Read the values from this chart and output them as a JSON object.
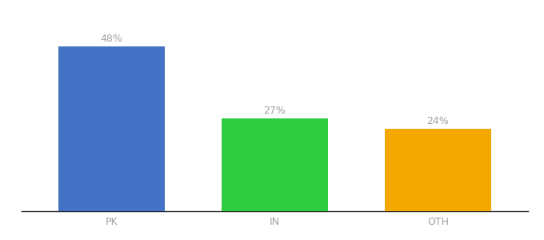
{
  "categories": [
    "PK",
    "IN",
    "OTH"
  ],
  "values": [
    48,
    27,
    24
  ],
  "bar_colors": [
    "#4472c4",
    "#2ecc40",
    "#f5a800"
  ],
  "label_color": "#a0a0a0",
  "value_labels": [
    "48%",
    "27%",
    "24%"
  ],
  "background_color": "#ffffff",
  "ylim": [
    0,
    56
  ],
  "bar_width": 0.65,
  "label_fontsize": 9,
  "tick_fontsize": 9,
  "spine_color": "#222222",
  "xlim_left": -0.55,
  "xlim_right": 2.55
}
